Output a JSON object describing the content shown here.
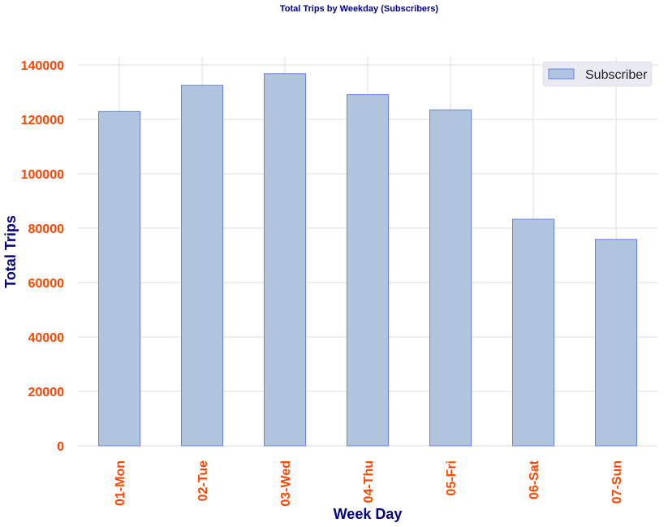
{
  "chart_data": {
    "type": "bar",
    "title": "Total Trips by Weekday (Subscribers)",
    "xlabel": "Week Day",
    "ylabel": "Total Trips",
    "categories": [
      "01-Mon",
      "02-Tue",
      "03-Wed",
      "04-Thu",
      "05-Fri",
      "06-Sat",
      "07-Sun"
    ],
    "series": [
      {
        "name": "Subscriber",
        "values": [
          122900,
          132500,
          136800,
          129100,
          123500,
          83300,
          75900
        ]
      }
    ],
    "ylim": [
      0,
      143000
    ],
    "yticks": [
      0,
      20000,
      40000,
      60000,
      80000,
      100000,
      120000,
      140000
    ],
    "ytick_labels": [
      "0",
      "20000",
      "40000",
      "60000",
      "80000",
      "100000",
      "120000",
      "140000"
    ],
    "grid": true,
    "legend_position": "top-right",
    "colors": {
      "bar_fill": "#b0c4de",
      "bar_edge": "#6a7fe8",
      "tick_labels": "#ff4500",
      "axis_labels": "#000080",
      "title": "#000080",
      "grid": "#dddddd",
      "legend_bg": "#eaeaf2"
    }
  }
}
